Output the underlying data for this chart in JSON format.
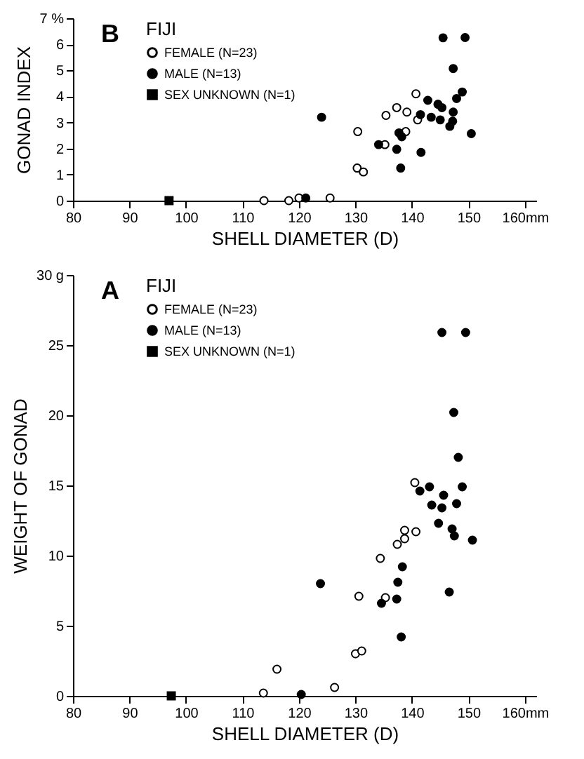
{
  "chart_data": [
    {
      "type": "scatter",
      "annotations": [
        "B"
      ],
      "xlabel": "SHELL DIAMETER (D)",
      "ylabel": "GONAD INDEX",
      "legend_title": "FIJI",
      "legend": "top left",
      "grid": false,
      "xlim": [
        80,
        162
      ],
      "xticks": [
        80,
        90,
        100,
        110,
        120,
        130,
        140,
        150,
        {
          "value": 160,
          "label": "160mm"
        }
      ],
      "ylim": [
        0,
        7
      ],
      "yticks": [
        0,
        1,
        2,
        3,
        4,
        5,
        6,
        {
          "value": 7,
          "label": "7 %"
        }
      ],
      "series": [
        {
          "name": "FEMALE (N=23)",
          "color": "#ffffff",
          "marker": "circle",
          "x": [
            113.8,
            118.2,
            120,
            125.5,
            130.4,
            130.3,
            131.4,
            135.4,
            135.2,
            137.3,
            139.1,
            138.9,
            140.7,
            141
          ],
          "values": [
            0,
            0,
            0.1,
            0.1,
            2.65,
            1.25,
            1.1,
            3.27,
            2.15,
            3.57,
            3.4,
            2.65,
            4.1,
            3.1
          ]
        },
        {
          "name": "MALE (N=13)",
          "color": "#000000",
          "marker": "circle",
          "x": [
            121.2,
            124,
            134.1,
            137.3,
            137.7,
            138.2,
            138,
            141.5,
            141.6,
            142.8,
            143.4,
            144.6,
            145.3,
            145,
            145.5,
            146.7,
            147.2,
            147.3,
            147.3,
            147.9,
            148.9,
            149.4,
            150.5
          ],
          "values": [
            0.1,
            3.2,
            2.15,
            1.97,
            2.6,
            2.45,
            1.25,
            3.3,
            1.85,
            3.85,
            3.2,
            3.7,
            3.57,
            3.1,
            6.25,
            2.85,
            3.05,
            3.4,
            5.07,
            3.92,
            4.17,
            6.26,
            2.57
          ]
        },
        {
          "name": "SEX UNKNOWN (N=1)",
          "color": "#000000",
          "marker": "square",
          "x": [
            97
          ],
          "values": [
            0
          ]
        }
      ]
    },
    {
      "type": "scatter",
      "annotations": [
        "A"
      ],
      "xlabel": "SHELL DIAMETER (D)",
      "ylabel": "WEIGHT OF GONAD",
      "legend_title": "FIJI",
      "legend": "top left",
      "grid": false,
      "xlim": [
        80,
        162
      ],
      "xticks": [
        80,
        90,
        100,
        110,
        120,
        130,
        140,
        150,
        {
          "value": 160,
          "label": "160mm"
        }
      ],
      "ylim": [
        0,
        30
      ],
      "yticks": [
        0,
        5,
        10,
        15,
        20,
        25,
        {
          "value": 30,
          "label": "30 g"
        }
      ],
      "series": [
        {
          "name": "FEMALE (N=23)",
          "color": "#ffffff",
          "marker": "circle",
          "x": [
            113.7,
            116.1,
            126.3,
            130.6,
            130,
            131.1,
            134.4,
            135.3,
            137.4,
            138.7,
            138.7,
            140.7,
            140.5
          ],
          "values": [
            0.2,
            1.9,
            0.6,
            7.1,
            3,
            3.2,
            9.8,
            7,
            10.8,
            11.2,
            11.8,
            11.7,
            15.2
          ]
        },
        {
          "name": "MALE (N=13)",
          "color": "#000000",
          "marker": "circle",
          "x": [
            120.4,
            123.8,
            134.6,
            137.3,
            137.5,
            138.3,
            138.1,
            144.7,
            147.1,
            147.5,
            146.6,
            150.7,
            141.4,
            143.1,
            145.6,
            143.5,
            145.3,
            147.9,
            148.9,
            148.2,
            147.4,
            145.3,
            149.5
          ],
          "values": [
            0.1,
            8,
            6.6,
            6.9,
            8.1,
            9.2,
            4.2,
            12.3,
            11.9,
            11.4,
            7.4,
            11.1,
            14.6,
            14.9,
            14.3,
            13.6,
            13.4,
            13.7,
            14.9,
            17,
            20.2,
            25.9,
            25.9
          ]
        },
        {
          "name": "SEX UNKNOWN (N=1)",
          "color": "#000000",
          "marker": "square",
          "x": [
            97.4
          ],
          "values": [
            0
          ]
        }
      ]
    }
  ]
}
